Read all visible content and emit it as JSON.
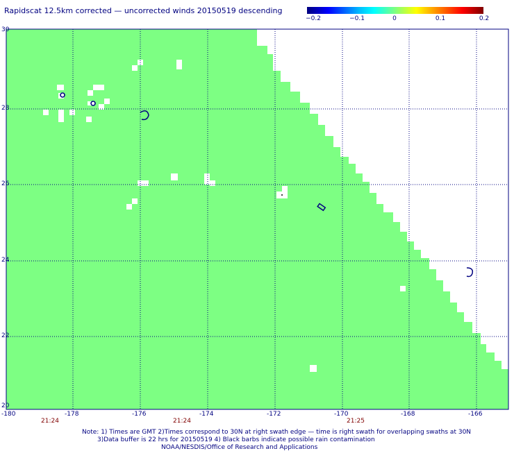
{
  "title": "Rapidscat 12.5km corrected — uncorrected winds 20150519 descending",
  "colorbar": {
    "labels": [
      "−0.2",
      "−0.1",
      "0",
      "0.1",
      "0.2"
    ]
  },
  "map": {
    "lat_labels": [
      "30",
      "28",
      "26",
      "24",
      "22",
      "20"
    ],
    "lon_labels": [
      "-180",
      "-178",
      "-176",
      "-174",
      "-172",
      "-170",
      "-168",
      "-166"
    ],
    "time_labels": [
      "21:24",
      "21:24",
      "21:25"
    ],
    "swath_color": "#7dff83",
    "grid_color": "#000080"
  },
  "notes": {
    "line1": "Note: 1) Times are GMT 2)Times correspond to 30N at right swath edge — time is right swath for overlapping swaths at 30N",
    "line2": "3)Data buffer is 22 hrs for 20150519 4) Black barbs indicate possible rain contamination",
    "line3": "NOAA/NESDIS/Office of Research and Applications"
  }
}
